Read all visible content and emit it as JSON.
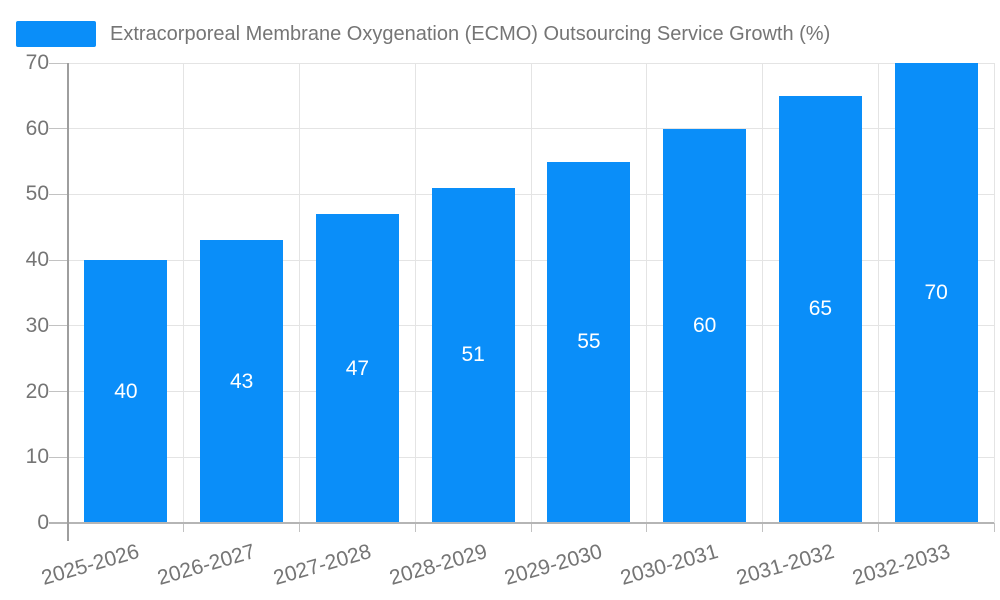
{
  "chart_data": {
    "type": "bar",
    "title": "Extracorporeal Membrane Oxygenation (ECMO) Outsourcing Service Growth (%)",
    "legend_entries": [
      "Extracorporeal Membrane Oxygenation (ECMO) Outsourcing Service Growth (%)"
    ],
    "legend_position": "top-left",
    "categories": [
      "2025-2026",
      "2026-2027",
      "2027-2028",
      "2028-2029",
      "2029-2030",
      "2030-2031",
      "2031-2032",
      "2032-2033"
    ],
    "values": [
      40,
      43,
      47,
      51,
      55,
      60,
      65,
      70
    ],
    "data_labels_shown": true,
    "xlabel": "",
    "ylabel": "",
    "ylim": [
      0,
      70
    ],
    "yticks": [
      0,
      10,
      20,
      30,
      40,
      50,
      60,
      70
    ],
    "grid": true,
    "bar_color": "#0a8ef9",
    "bar_label_color": "#ffffff",
    "axis_text_color": "#757575",
    "grid_color": "#e4e4e4",
    "axis_line_color": "#9e9e9e",
    "baseline_color": "#b5b5b5"
  }
}
